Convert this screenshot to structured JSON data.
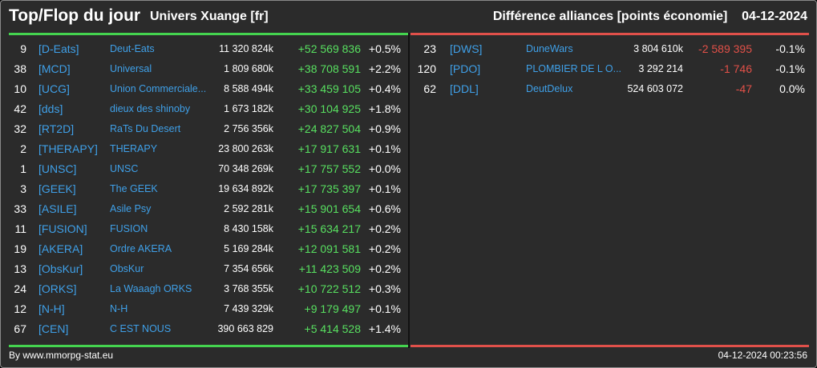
{
  "header": {
    "title": "Top/Flop du jour",
    "universe": "Univers Xuange [fr]",
    "category": "Différence alliances [points économie]",
    "date": "04-12-2024"
  },
  "colors": {
    "top": "#44d34f",
    "flop": "#e0504a",
    "link": "#3fa0e8"
  },
  "top": [
    {
      "rank": "9",
      "tag": "[D-Eats]",
      "name": "Deut-Eats",
      "points": "11 320 824k",
      "diff": "+52 569 836",
      "pct": "+0.5%"
    },
    {
      "rank": "38",
      "tag": "[MCD]",
      "name": "Universal",
      "points": "1 809 680k",
      "diff": "+38 708 591",
      "pct": "+2.2%"
    },
    {
      "rank": "10",
      "tag": "[UCG]",
      "name": "Union Commerciale...",
      "points": "8 588 494k",
      "diff": "+33 459 105",
      "pct": "+0.4%"
    },
    {
      "rank": "42",
      "tag": "[dds]",
      "name": "dieux des shinoby",
      "points": "1 673 182k",
      "diff": "+30 104 925",
      "pct": "+1.8%"
    },
    {
      "rank": "32",
      "tag": "[RT2D]",
      "name": "RaTs Du Desert",
      "points": "2 756 356k",
      "diff": "+24 827 504",
      "pct": "+0.9%"
    },
    {
      "rank": "2",
      "tag": "[THERAPY]",
      "name": "THERAPY",
      "points": "23 800 263k",
      "diff": "+17 917 631",
      "pct": "+0.1%"
    },
    {
      "rank": "1",
      "tag": "[UNSC]",
      "name": "UNSC",
      "points": "70 348 269k",
      "diff": "+17 757 552",
      "pct": "+0.0%"
    },
    {
      "rank": "3",
      "tag": "[GEEK]",
      "name": "The GEEK",
      "points": "19 634 892k",
      "diff": "+17 735 397",
      "pct": "+0.1%"
    },
    {
      "rank": "33",
      "tag": "[ASILE]",
      "name": "Asile Psy",
      "points": "2 592 281k",
      "diff": "+15 901 654",
      "pct": "+0.6%"
    },
    {
      "rank": "11",
      "tag": "[FUSION]",
      "name": "FUSION",
      "points": "8 430 158k",
      "diff": "+15 634 217",
      "pct": "+0.2%"
    },
    {
      "rank": "19",
      "tag": "[AKERA]",
      "name": "Ordre AKERA",
      "points": "5 169 284k",
      "diff": "+12 091 581",
      "pct": "+0.2%"
    },
    {
      "rank": "13",
      "tag": "[ObsKur]",
      "name": "ObsKur",
      "points": "7 354 656k",
      "diff": "+11 423 509",
      "pct": "+0.2%"
    },
    {
      "rank": "24",
      "tag": "[ORKS]",
      "name": "La Waaagh ORKS",
      "points": "3 768 355k",
      "diff": "+10 722 512",
      "pct": "+0.3%"
    },
    {
      "rank": "12",
      "tag": "[N-H]",
      "name": "N-H",
      "points": "7 439 329k",
      "diff": "+9 179 497",
      "pct": "+0.1%"
    },
    {
      "rank": "67",
      "tag": "[CEN]",
      "name": "C EST NOUS",
      "points": "390 663 829",
      "diff": "+5 414 528",
      "pct": "+1.4%"
    }
  ],
  "flop": [
    {
      "rank": "23",
      "tag": "[DWS]",
      "name": "DuneWars",
      "points": "3 804 610k",
      "diff": "-2 589 395",
      "pct": "-0.1%"
    },
    {
      "rank": "120",
      "tag": "[PDO]",
      "name": "PLOMBIER DE L O...",
      "points": "3 292 214",
      "diff": "-1 746",
      "pct": "-0.1%"
    },
    {
      "rank": "62",
      "tag": "[DDL]",
      "name": "DeutDelux",
      "points": "524 603 072",
      "diff": "-47",
      "pct": "0.0%"
    }
  ],
  "footer": {
    "credit": "By www.mmorpg-stat.eu",
    "timestamp": "04-12-2024 00:23:56"
  }
}
